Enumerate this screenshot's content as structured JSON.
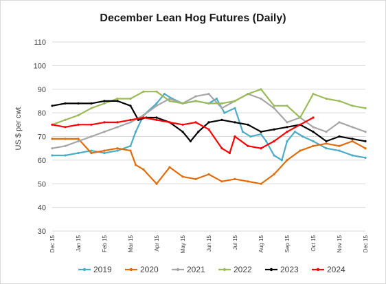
{
  "chart_data": {
    "type": "line",
    "title": "December Lean Hog Futures (Daily)",
    "xlabel": "",
    "ylabel": "US $ per cwt",
    "ylim": [
      30,
      110
    ],
    "yticks": [
      30,
      40,
      50,
      60,
      70,
      80,
      90,
      100,
      110
    ],
    "x_tick_labels": [
      "Dec 15",
      "Jan 15",
      "Feb 15",
      "Mar 15",
      "Apr 15",
      "May 15",
      "Jun 15",
      "Jul 15",
      "Aug 15",
      "Sep 15",
      "Oct 15",
      "Nov 15",
      "Dec 15"
    ],
    "grid": "horizontal",
    "legend_position": "bottom",
    "series": [
      {
        "name": "2019",
        "color": "#4bacc6",
        "x": [
          0,
          0.5,
          1,
          1.5,
          2,
          2.5,
          3,
          3.2,
          3.5,
          4,
          4.3,
          4.6,
          5,
          5.5,
          6,
          6.3,
          6.6,
          7,
          7.3,
          7.6,
          8,
          8.2,
          8.5,
          8.8,
          9,
          9.3,
          9.6,
          10,
          10.5,
          11,
          11.5,
          12
        ],
        "values": [
          62,
          62,
          63,
          64,
          63,
          64,
          66,
          72,
          79,
          84,
          88,
          86,
          84,
          85,
          84,
          86,
          80,
          82,
          72,
          70,
          71,
          68,
          62,
          60,
          68,
          72,
          70,
          68,
          65,
          64,
          62,
          61
        ]
      },
      {
        "name": "2020",
        "color": "#e36c09",
        "x": [
          0,
          0.5,
          1,
          1.5,
          2,
          2.5,
          3,
          3.2,
          3.5,
          4,
          4.5,
          5,
          5.5,
          6,
          6.5,
          7,
          7.5,
          8,
          8.5,
          9,
          9.5,
          10,
          10.5,
          11,
          11.5,
          12
        ],
        "values": [
          69,
          69,
          69,
          63,
          64,
          65,
          64,
          58,
          56,
          50,
          57,
          53,
          52,
          54,
          51,
          52,
          51,
          50,
          54,
          60,
          64,
          66,
          67,
          66,
          68,
          65
        ]
      },
      {
        "name": "2021",
        "color": "#a6a6a6",
        "x": [
          0,
          0.5,
          1,
          1.5,
          2,
          2.5,
          3,
          3.5,
          4,
          4.5,
          5,
          5.5,
          6,
          6.5,
          7,
          7.5,
          8,
          8.5,
          9,
          9.5,
          10,
          10.5,
          11,
          11.5,
          12
        ],
        "values": [
          65,
          66,
          68,
          70,
          72,
          74,
          76,
          79,
          83,
          86,
          84,
          87,
          88,
          82,
          85,
          88,
          86,
          82,
          76,
          78,
          74,
          72,
          76,
          74,
          72
        ]
      },
      {
        "name": "2022",
        "color": "#9bbb59",
        "x": [
          0,
          0.5,
          1,
          1.5,
          2,
          2.5,
          3,
          3.5,
          4,
          4.5,
          5,
          5.5,
          6,
          6.5,
          7,
          7.5,
          8,
          8.5,
          9,
          9.5,
          10,
          10.5,
          11,
          11.5,
          12
        ],
        "values": [
          75,
          77,
          79,
          82,
          84,
          86,
          86,
          89,
          89,
          85,
          84,
          85,
          84,
          84,
          85,
          88,
          90,
          83,
          83,
          78,
          88,
          86,
          85,
          83,
          82
        ]
      },
      {
        "name": "2023",
        "color": "#000000",
        "x": [
          0,
          0.5,
          1,
          1.5,
          2,
          2.5,
          3,
          3.3,
          3.6,
          4,
          4.5,
          5,
          5.3,
          5.6,
          6,
          6.5,
          7,
          7.5,
          8,
          8.5,
          9,
          9.5,
          10,
          10.5,
          11,
          11.5,
          12
        ],
        "values": [
          83,
          84,
          84,
          84,
          85,
          85,
          83,
          77,
          78,
          78,
          76,
          72,
          68,
          72,
          76,
          77,
          76,
          75,
          72,
          73,
          74,
          75,
          72,
          68,
          70,
          69,
          68
        ]
      },
      {
        "name": "2024",
        "color": "#ff0000",
        "x": [
          0,
          0.5,
          1,
          1.5,
          2,
          2.5,
          3,
          3.5,
          4,
          4.5,
          5,
          5.5,
          6,
          6.5,
          6.8,
          7,
          7.5,
          8,
          8.5,
          9,
          9.5,
          10
        ],
        "values": [
          75,
          74,
          75,
          75,
          76,
          76,
          77,
          78,
          77,
          76,
          75,
          76,
          73,
          65,
          63,
          70,
          66,
          65,
          68,
          72,
          75,
          78
        ]
      }
    ]
  }
}
